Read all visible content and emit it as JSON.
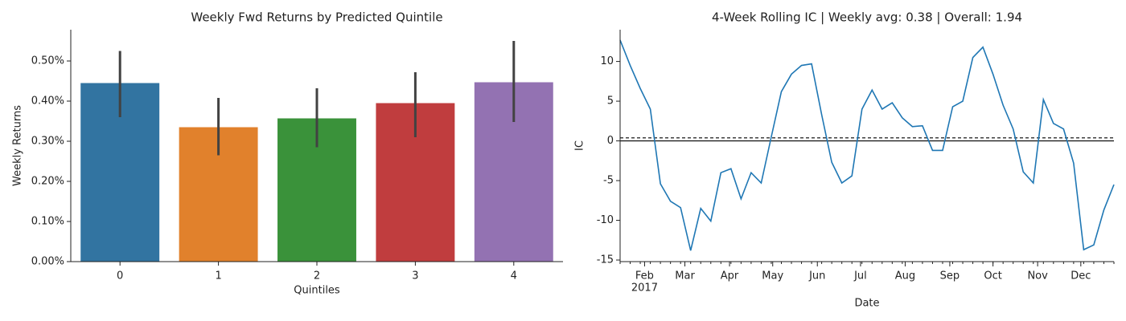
{
  "chart_data": [
    {
      "type": "bar",
      "title": "Weekly Fwd Returns by Predicted Quintile",
      "xlabel": "Quintiles",
      "ylabel": "Weekly Returns",
      "categories": [
        "0",
        "1",
        "2",
        "3",
        "4"
      ],
      "values": [
        0.445,
        0.335,
        0.357,
        0.395,
        0.447
      ],
      "ci_low": [
        0.36,
        0.265,
        0.285,
        0.31,
        0.348
      ],
      "ci_high": [
        0.525,
        0.408,
        0.432,
        0.472,
        0.55
      ],
      "colors": [
        "#3274a1",
        "#e1812c",
        "#3a923a",
        "#c03d3e",
        "#9372b2"
      ],
      "ylim": [
        0,
        0.578
      ],
      "yticks": [
        {
          "value": 0,
          "label": "0.00%"
        },
        {
          "value": 0.1,
          "label": "0.10%"
        },
        {
          "value": 0.2,
          "label": "0.20%"
        },
        {
          "value": 0.3,
          "label": "0.30%"
        },
        {
          "value": 0.4,
          "label": "0.40%"
        },
        {
          "value": 0.5,
          "label": "0.50%"
        }
      ]
    },
    {
      "type": "line",
      "title": "4-Week Rolling IC | Weekly avg: 0.38 | Overall: 1.94",
      "xlabel": "Date",
      "ylabel": "IC",
      "x": [
        "2017-01-15",
        "2017-01-22",
        "2017-01-29",
        "2017-02-05",
        "2017-02-12",
        "2017-02-19",
        "2017-02-26",
        "2017-03-05",
        "2017-03-12",
        "2017-03-19",
        "2017-03-26",
        "2017-04-02",
        "2017-04-09",
        "2017-04-16",
        "2017-04-23",
        "2017-04-30",
        "2017-05-07",
        "2017-05-14",
        "2017-05-21",
        "2017-05-28",
        "2017-06-04",
        "2017-06-11",
        "2017-06-18",
        "2017-06-25",
        "2017-07-02",
        "2017-07-09",
        "2017-07-16",
        "2017-07-23",
        "2017-07-30",
        "2017-08-06",
        "2017-08-13",
        "2017-08-20",
        "2017-08-27",
        "2017-09-03",
        "2017-09-10",
        "2017-09-17",
        "2017-09-24",
        "2017-10-01",
        "2017-10-08",
        "2017-10-15",
        "2017-10-22",
        "2017-10-29",
        "2017-11-05",
        "2017-11-12",
        "2017-11-19",
        "2017-11-26",
        "2017-12-03",
        "2017-12-10",
        "2017-12-17",
        "2017-12-24"
      ],
      "series": [
        {
          "name": "IC",
          "color": "#1f77b4",
          "values": [
            12.7,
            9.5,
            6.6,
            4.0,
            -5.4,
            -7.6,
            -8.4,
            -13.8,
            -8.5,
            -10.1,
            -4.0,
            -3.5,
            -7.3,
            -4.0,
            -5.3,
            0.5,
            6.2,
            8.4,
            9.5,
            9.7,
            3.3,
            -2.7,
            -5.3,
            -4.4,
            4.0,
            6.4,
            4.0,
            4.8,
            2.9,
            1.8,
            1.9,
            -1.2,
            -1.2,
            4.3,
            5.0,
            10.5,
            11.8,
            8.4,
            4.5,
            1.5,
            -3.9,
            -5.3,
            5.2,
            2.2,
            1.5,
            -2.8,
            -13.7,
            -13.1,
            -8.7,
            -5.5
          ]
        }
      ],
      "hlines": [
        {
          "value": 0,
          "style": "solid"
        },
        {
          "value": 0.38,
          "style": "dashed"
        }
      ],
      "xlim": [
        "2017-01-15",
        "2017-12-24"
      ],
      "xticks": [
        {
          "value": "2017-02-01",
          "label": "Feb"
        },
        {
          "value": "2017-03-01",
          "label": "Mar"
        },
        {
          "value": "2017-04-01",
          "label": "Apr"
        },
        {
          "value": "2017-05-01",
          "label": "May"
        },
        {
          "value": "2017-06-01",
          "label": "Jun"
        },
        {
          "value": "2017-07-01",
          "label": "Jul"
        },
        {
          "value": "2017-08-01",
          "label": "Aug"
        },
        {
          "value": "2017-09-01",
          "label": "Sep"
        },
        {
          "value": "2017-10-01",
          "label": "Oct"
        },
        {
          "value": "2017-11-01",
          "label": "Nov"
        },
        {
          "value": "2017-12-01",
          "label": "Dec"
        }
      ],
      "xtick_year": "2017",
      "ylim": [
        -15.2,
        14.0
      ],
      "yticks": [
        -15,
        -10,
        -5,
        0,
        5,
        10
      ]
    }
  ]
}
